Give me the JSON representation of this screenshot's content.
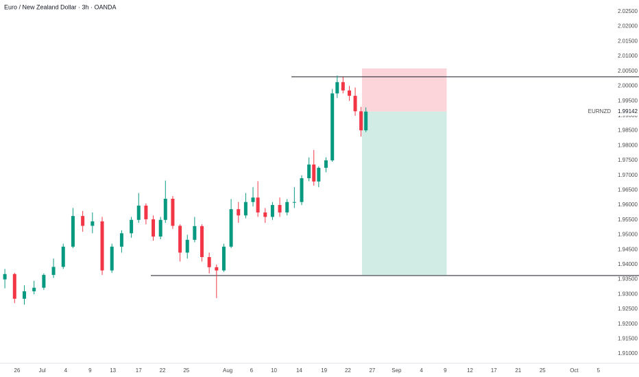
{
  "chart_data": {
    "type": "candlestick",
    "title": "Euro / New Zealand Dollar · 3h · OANDA",
    "x": [
      1,
      3,
      5,
      7,
      9,
      11,
      13,
      15,
      17,
      19,
      21,
      23,
      25,
      27,
      28.5,
      30,
      31.5,
      33,
      34,
      35.5,
      37,
      38.5,
      40,
      41.5,
      43,
      44.5,
      46,
      47.5,
      49,
      50.5,
      52,
      53,
      54.5,
      56,
      57.5,
      59,
      60.5,
      62,
      63.5,
      64.5,
      65.5,
      67,
      68.3,
      69.3,
      70.5,
      71.8,
      73,
      74.2,
      75.2
    ],
    "open": [
      1.935,
      1.9368,
      1.9285,
      1.931,
      1.9322,
      1.9365,
      1.9392,
      1.946,
      1.9563,
      1.953,
      1.9545,
      1.938,
      1.946,
      1.9505,
      1.955,
      1.9598,
      1.9552,
      1.9494,
      1.955,
      1.9621,
      1.953,
      1.944,
      1.9483,
      1.9529,
      1.9425,
      1.9391,
      1.938,
      1.946,
      1.9586,
      1.9565,
      1.961,
      1.9625,
      1.9575,
      1.956,
      1.96,
      1.9575,
      1.961,
      1.961,
      1.969,
      1.9736,
      1.9679,
      1.9725,
      1.975,
      1.9975,
      2.0013,
      1.9985,
      1.9967,
      1.9915,
      1.9851
    ],
    "high": [
      1.9385,
      1.9372,
      1.933,
      1.9345,
      1.937,
      1.942,
      1.947,
      1.959,
      1.958,
      1.9575,
      1.956,
      1.947,
      1.9515,
      1.956,
      1.964,
      1.9605,
      1.9565,
      1.956,
      1.9682,
      1.963,
      1.9535,
      1.95,
      1.956,
      1.9535,
      1.944,
      1.94,
      1.947,
      1.962,
      1.961,
      1.964,
      1.966,
      1.968,
      1.959,
      1.961,
      1.9625,
      1.962,
      1.966,
      1.97,
      1.976,
      1.9785,
      1.973,
      1.976,
      1.999,
      2.0035,
      2.003,
      2.0,
      1.9995,
      1.993,
      1.9928
    ],
    "low": [
      1.932,
      1.927,
      1.9265,
      1.93,
      1.9315,
      1.9355,
      1.9385,
      1.9455,
      1.951,
      1.9505,
      1.9365,
      1.9372,
      1.944,
      1.949,
      1.954,
      1.9535,
      1.948,
      1.9485,
      1.954,
      1.952,
      1.941,
      1.942,
      1.9475,
      1.941,
      1.937,
      1.9287,
      1.9375,
      1.9455,
      1.954,
      1.9555,
      1.9595,
      1.956,
      1.954,
      1.955,
      1.956,
      1.9565,
      1.959,
      1.96,
      1.968,
      1.9665,
      1.966,
      1.971,
      1.9745,
      1.996,
      1.9975,
      1.995,
      1.99,
      1.983,
      1.9845
    ],
    "close": [
      1.9368,
      1.9285,
      1.931,
      1.9322,
      1.9365,
      1.9392,
      1.946,
      1.9563,
      1.953,
      1.9545,
      1.938,
      1.946,
      1.9505,
      1.955,
      1.9598,
      1.9552,
      1.9494,
      1.955,
      1.9621,
      1.953,
      1.944,
      1.9483,
      1.9529,
      1.9425,
      1.9391,
      1.938,
      1.946,
      1.9586,
      1.9565,
      1.961,
      1.9625,
      1.9575,
      1.956,
      1.96,
      1.9575,
      1.961,
      1.961,
      1.969,
      1.9736,
      1.9679,
      1.9725,
      1.975,
      1.9975,
      2.0013,
      1.9985,
      1.9967,
      1.9915,
      1.9851,
      1.9914
    ],
    "up_color": "#089981",
    "down_color": "#f23645",
    "xlim": [
      0,
      124
    ],
    "ylim": [
      1.9068,
      2.0289
    ],
    "xticks": [
      {
        "value": 3.5,
        "label": "26"
      },
      {
        "value": 8.7,
        "label": "Jul"
      },
      {
        "value": 13.5,
        "label": "4"
      },
      {
        "value": 18.5,
        "label": "9"
      },
      {
        "value": 23.2,
        "label": "13"
      },
      {
        "value": 28.5,
        "label": "17"
      },
      {
        "value": 33.4,
        "label": "22"
      },
      {
        "value": 38.3,
        "label": "25"
      },
      {
        "value": 46.8,
        "label": "Aug"
      },
      {
        "value": 51.7,
        "label": "6"
      },
      {
        "value": 56.3,
        "label": "10"
      },
      {
        "value": 61.5,
        "label": "14"
      },
      {
        "value": 66.6,
        "label": "19"
      },
      {
        "value": 71.5,
        "label": "22"
      },
      {
        "value": 76.5,
        "label": "27"
      },
      {
        "value": 81.5,
        "label": "Sep"
      },
      {
        "value": 86.6,
        "label": "4"
      },
      {
        "value": 91.5,
        "label": "9"
      },
      {
        "value": 96.6,
        "label": "12"
      },
      {
        "value": 101.5,
        "label": "17"
      },
      {
        "value": 106.5,
        "label": "21"
      },
      {
        "value": 111.5,
        "label": "25"
      },
      {
        "value": 118,
        "label": "Oct"
      },
      {
        "value": 123,
        "label": "5"
      }
    ],
    "yticks": [
      {
        "value": 1.91,
        "label": "1.91000"
      },
      {
        "value": 1.915,
        "label": "1.91500"
      },
      {
        "value": 1.92,
        "label": "1.92000"
      },
      {
        "value": 1.925,
        "label": "1.92500"
      },
      {
        "value": 1.93,
        "label": "1.93000"
      },
      {
        "value": 1.935,
        "label": "1.93500"
      },
      {
        "value": 1.94,
        "label": "1.94000"
      },
      {
        "value": 1.945,
        "label": "1.94500"
      },
      {
        "value": 1.95,
        "label": "1.95000"
      },
      {
        "value": 1.955,
        "label": "1.95500"
      },
      {
        "value": 1.96,
        "label": "1.96000"
      },
      {
        "value": 1.965,
        "label": "1.96500"
      },
      {
        "value": 1.97,
        "label": "1.97000"
      },
      {
        "value": 1.975,
        "label": "1.97500"
      },
      {
        "value": 1.98,
        "label": "1.98000"
      },
      {
        "value": 1.985,
        "label": "1.98500"
      },
      {
        "value": 1.99,
        "label": "1.99000"
      },
      {
        "value": 1.995,
        "label": "1.99500"
      },
      {
        "value": 2.0,
        "label": "2.00000"
      },
      {
        "value": 2.005,
        "label": "2.00500"
      },
      {
        "value": 2.01,
        "label": "2.01000"
      },
      {
        "value": 2.015,
        "label": "2.01500"
      },
      {
        "value": 2.02,
        "label": "2.02000"
      },
      {
        "value": 2.025,
        "label": "2.02500"
      }
    ],
    "levels": [
      {
        "price": 2.0031,
        "x_start": 59.9
      },
      {
        "price": 1.9363,
        "x_start": 31
      }
    ],
    "position": {
      "x_start": 74.4,
      "x_end": 91.8,
      "stop": 2.0059,
      "entry": 1.9914,
      "target": 1.9365,
      "stop_color": "#fcd5da",
      "target_color": "#d1ebe5"
    },
    "last_price": {
      "symbol": "EURNZD",
      "value": 1.99142
    }
  }
}
